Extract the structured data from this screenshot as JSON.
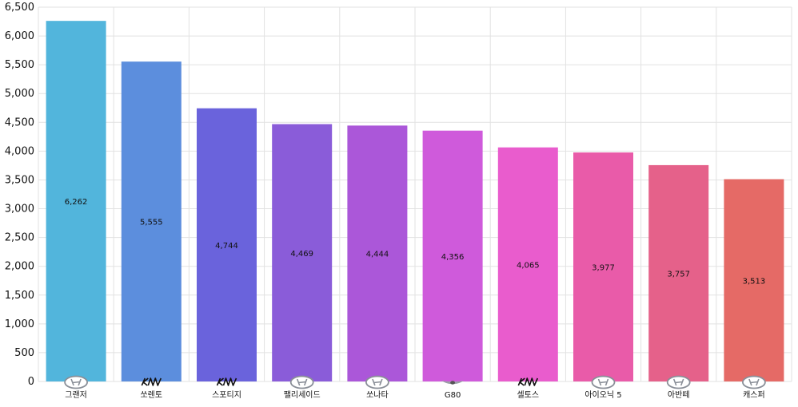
{
  "chart_data": {
    "type": "bar",
    "categories": [
      "그랜저",
      "쏘렌토",
      "스포티지",
      "팰리세이드",
      "쏘나타",
      "G80",
      "셀토스",
      "아이오닉 5",
      "아반떼",
      "캐스퍼"
    ],
    "values": [
      6262,
      5555,
      4744,
      4469,
      4444,
      4356,
      4065,
      3977,
      3757,
      3513
    ],
    "value_labels": [
      "6,262",
      "5,555",
      "4,744",
      "4,469",
      "4,444",
      "4,356",
      "4,065",
      "3,977",
      "3,757",
      "3,513"
    ],
    "brand_icons": [
      "hyundai-logo-icon",
      "kia-logo-icon",
      "kia-logo-icon",
      "hyundai-logo-icon",
      "hyundai-logo-icon",
      "genesis-logo-icon",
      "kia-logo-icon",
      "hyundai-logo-icon",
      "hyundai-logo-icon",
      "hyundai-logo-icon"
    ],
    "colors": [
      "#52b5dc",
      "#5c8edd",
      "#6a63dc",
      "#8a5cd9",
      "#ab57d9",
      "#cf5adb",
      "#e95ccd",
      "#e95ba9",
      "#e5618a",
      "#e56a66"
    ],
    "yticks": [
      "0",
      "500",
      "1,000",
      "1,500",
      "2,000",
      "2,500",
      "3,000",
      "3,500",
      "4,000",
      "4,500",
      "5,000",
      "5,500",
      "6,000",
      "6,500"
    ],
    "ylim": [
      0,
      6500
    ],
    "grid": true,
    "title": "",
    "xlabel": "",
    "ylabel": ""
  }
}
